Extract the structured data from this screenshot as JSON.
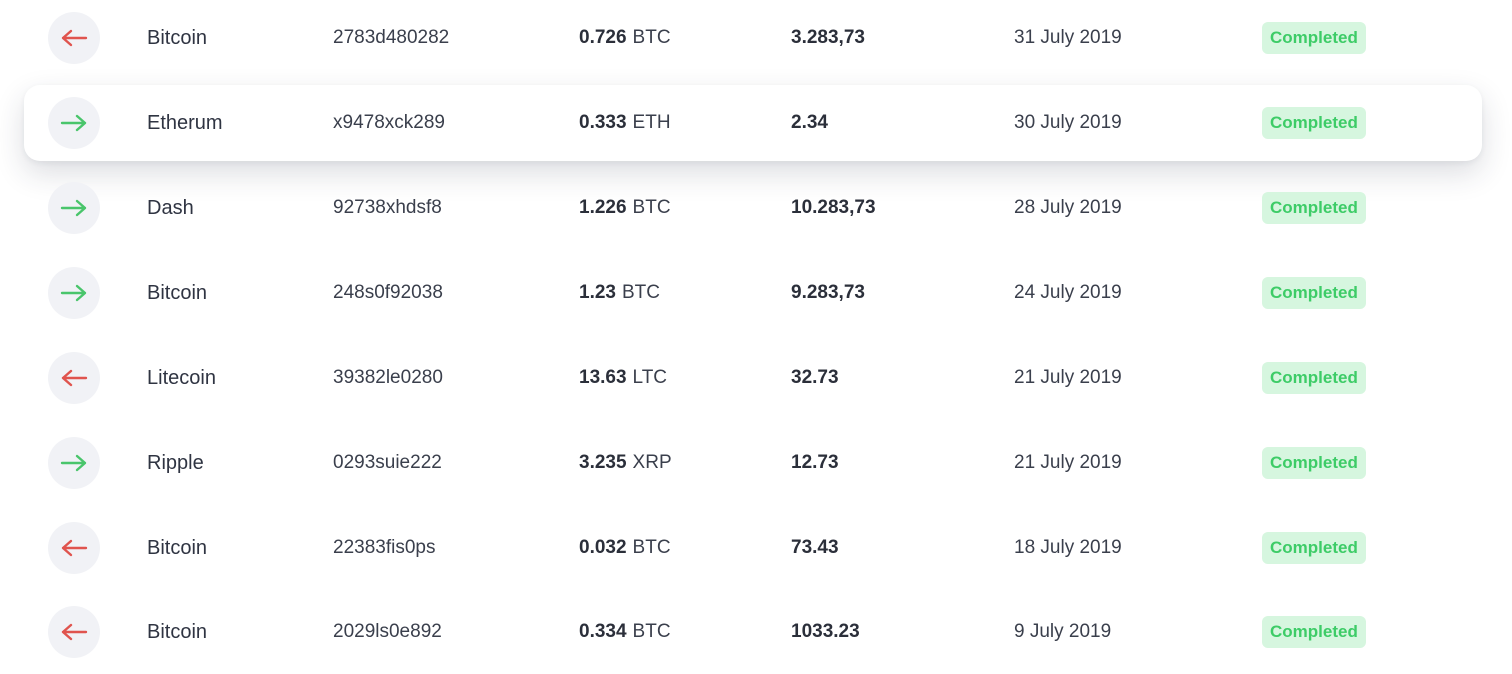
{
  "colors": {
    "incoming_arrow": "#49c56b",
    "outgoing_arrow": "#e0544e",
    "status_bg": "#d6f6df",
    "status_text": "#3dcc67"
  },
  "transactions": [
    {
      "direction": "outgoing",
      "icon": "arrow-left-icon",
      "coin": "Bitcoin",
      "txid": "2783d480282",
      "amount": "0.726",
      "unit": "BTC",
      "value": "3.283,73",
      "date": "31 July 2019",
      "status": "Completed",
      "highlighted": false
    },
    {
      "direction": "incoming",
      "icon": "arrow-right-icon",
      "coin": "Etherum",
      "txid": "x9478xck289",
      "amount": "0.333",
      "unit": "ETH",
      "value": "2.34",
      "date": "30 July 2019",
      "status": "Completed",
      "highlighted": true
    },
    {
      "direction": "incoming",
      "icon": "arrow-right-icon",
      "coin": "Dash",
      "txid": "92738xhdsf8",
      "amount": "1.226",
      "unit": "BTC",
      "value": "10.283,73",
      "date": "28 July 2019",
      "status": "Completed",
      "highlighted": false
    },
    {
      "direction": "incoming",
      "icon": "arrow-right-icon",
      "coin": "Bitcoin",
      "txid": "248s0f92038",
      "amount": "1.23",
      "unit": "BTC",
      "value": "9.283,73",
      "date": "24 July 2019",
      "status": "Completed",
      "highlighted": false
    },
    {
      "direction": "outgoing",
      "icon": "arrow-left-icon",
      "coin": "Litecoin",
      "txid": "39382le0280",
      "amount": "13.63",
      "unit": "LTC",
      "value": "32.73",
      "date": "21 July 2019",
      "status": "Completed",
      "highlighted": false
    },
    {
      "direction": "incoming",
      "icon": "arrow-right-icon",
      "coin": "Ripple",
      "txid": "0293suie222",
      "amount": "3.235",
      "unit": "XRP",
      "value": "12.73",
      "date": "21 July 2019",
      "status": "Completed",
      "highlighted": false
    },
    {
      "direction": "outgoing",
      "icon": "arrow-left-icon",
      "coin": "Bitcoin",
      "txid": "22383fis0ps",
      "amount": "0.032",
      "unit": "BTC",
      "value": "73.43",
      "date": "18 July 2019",
      "status": "Completed",
      "highlighted": false
    },
    {
      "direction": "outgoing",
      "icon": "arrow-left-icon",
      "coin": "Bitcoin",
      "txid": "2029ls0e892",
      "amount": "0.334",
      "unit": "BTC",
      "value": "1033.23",
      "date": "9 July 2019",
      "status": "Completed",
      "highlighted": false
    }
  ]
}
